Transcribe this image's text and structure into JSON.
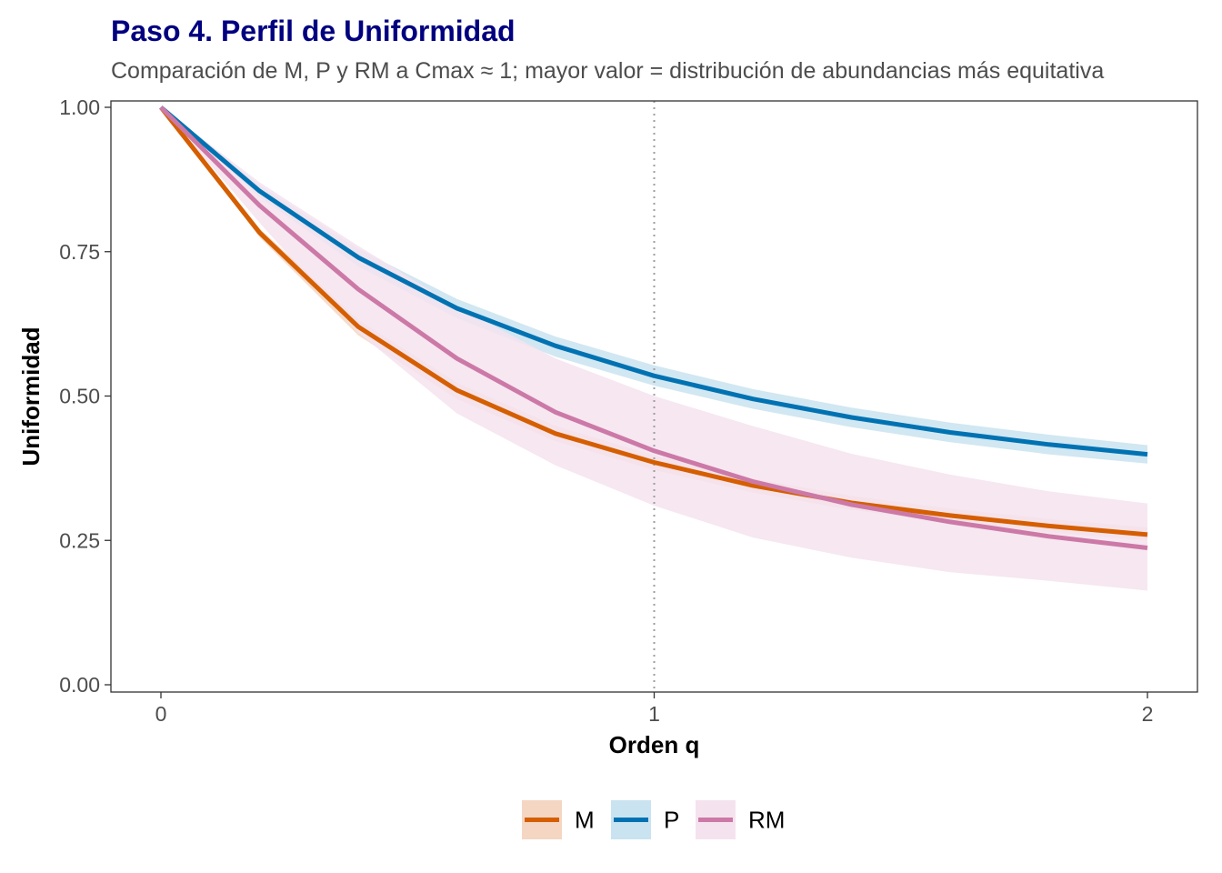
{
  "chart_data": {
    "type": "line",
    "title": "Paso 4. Perfil de Uniformidad",
    "subtitle": "Comparación de M, P y RM a Cmax ≈ 1; mayor valor = distribución de abundancias más equitativa",
    "xlabel": "Orden q",
    "ylabel": "Uniformidad",
    "xlim": [
      -0.1,
      2.1
    ],
    "ylim": [
      0.0,
      1.0
    ],
    "x_ticks": [
      0,
      1,
      2
    ],
    "x_tick_labels": [
      "0",
      "1",
      "2"
    ],
    "y_ticks": [
      0.0,
      0.25,
      0.5,
      0.75,
      1.0
    ],
    "y_tick_labels": [
      "0.00",
      "0.25",
      "0.50",
      "0.75",
      "1.00"
    ],
    "reference_line": {
      "x": 1,
      "style": "dotted",
      "color": "#9e9e9e"
    },
    "grid": false,
    "legend_position": "bottom",
    "x": [
      0,
      0.2,
      0.4,
      0.6,
      0.8,
      1.0,
      1.2,
      1.4,
      1.6,
      1.8,
      2.0
    ],
    "series": [
      {
        "name": "M",
        "color": "#d55e00",
        "ribbon_color": "#f4d6c3",
        "values": [
          1.0,
          0.783,
          0.62,
          0.51,
          0.435,
          0.385,
          0.345,
          0.315,
          0.293,
          0.275,
          0.26
        ],
        "lower": [
          1.0,
          0.775,
          0.605,
          0.495,
          0.422,
          0.372,
          0.333,
          0.303,
          0.281,
          0.264,
          0.25
        ],
        "upper": [
          1.0,
          0.79,
          0.632,
          0.523,
          0.448,
          0.397,
          0.357,
          0.327,
          0.305,
          0.287,
          0.272
        ]
      },
      {
        "name": "P",
        "color": "#0072b2",
        "ribbon_color": "#c9e3f0",
        "values": [
          1.0,
          0.855,
          0.74,
          0.652,
          0.587,
          0.535,
          0.495,
          0.463,
          0.437,
          0.416,
          0.399
        ],
        "lower": [
          1.0,
          0.845,
          0.725,
          0.635,
          0.568,
          0.518,
          0.478,
          0.446,
          0.42,
          0.399,
          0.383
        ],
        "upper": [
          1.0,
          0.865,
          0.755,
          0.668,
          0.603,
          0.553,
          0.512,
          0.48,
          0.454,
          0.433,
          0.415
        ]
      },
      {
        "name": "RM",
        "color": "#cc79a7",
        "ribbon_color": "#f4e3ee",
        "values": [
          1.0,
          0.83,
          0.685,
          0.565,
          0.472,
          0.405,
          0.352,
          0.312,
          0.282,
          0.257,
          0.237
        ],
        "lower": [
          1.0,
          0.8,
          0.61,
          0.47,
          0.38,
          0.31,
          0.255,
          0.22,
          0.195,
          0.18,
          0.163
        ],
        "upper": [
          1.0,
          0.87,
          0.76,
          0.655,
          0.565,
          0.5,
          0.448,
          0.4,
          0.364,
          0.335,
          0.314
        ]
      }
    ]
  }
}
